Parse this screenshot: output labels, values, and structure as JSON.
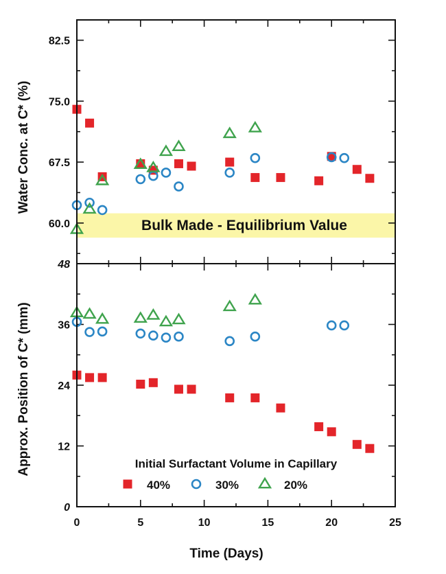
{
  "chart_data": [
    {
      "type": "scatter",
      "xlabel": "",
      "ylabel": "Water Conc. at C* (%)",
      "xlim": [
        0,
        25
      ],
      "ylim": [
        55,
        85
      ],
      "y_ticks": [
        60.0,
        67.5,
        75.0,
        82.5
      ],
      "y_tick_labels": [
        "60.0",
        "67.5",
        "75.0",
        "82.5"
      ],
      "band": {
        "y_range": [
          58.2,
          61.2
        ],
        "label": "Bulk Made - Equilibrium Value",
        "color": "#fbf6a8"
      },
      "series": [
        {
          "name": "40%",
          "marker": "square",
          "color": "#e3252a",
          "x": [
            0,
            1,
            2,
            5,
            6,
            8,
            9,
            12,
            14,
            16,
            19,
            20,
            22,
            23
          ],
          "y": [
            74.0,
            72.3,
            65.7,
            67.3,
            66.5,
            67.3,
            67.0,
            67.5,
            65.6,
            65.6,
            65.2,
            68.2,
            66.6,
            65.5
          ]
        },
        {
          "name": "30%",
          "marker": "circle",
          "color": "#2b86c5",
          "x": [
            0,
            1,
            2,
            5,
            6,
            7,
            8,
            12,
            14,
            20,
            21
          ],
          "y": [
            62.2,
            62.5,
            61.6,
            65.4,
            65.8,
            66.2,
            64.5,
            66.2,
            68.0,
            68.1,
            68.0
          ]
        },
        {
          "name": "20%",
          "marker": "triangle",
          "color": "#3fa34d",
          "x": [
            0,
            1,
            2,
            5,
            6,
            7,
            8,
            12,
            14
          ],
          "y": [
            59.2,
            61.7,
            65.2,
            67.2,
            66.8,
            68.8,
            69.4,
            71.0,
            71.7
          ]
        }
      ]
    },
    {
      "type": "scatter",
      "xlabel": "Time (Days)",
      "ylabel": "Approx. Position of C* (mm)",
      "xlim": [
        0,
        25
      ],
      "ylim": [
        0,
        48
      ],
      "x_ticks": [
        0,
        5,
        10,
        15,
        20,
        25
      ],
      "x_tick_labels": [
        "0",
        "5",
        "10",
        "15",
        "20",
        "25"
      ],
      "y_ticks": [
        0,
        12,
        24,
        36,
        48
      ],
      "y_tick_labels": [
        "0",
        "12",
        "24",
        "36",
        "48"
      ],
      "legend": {
        "title": "Initial Surfactant Volume in Capillary",
        "placement": "bottom-center"
      },
      "series": [
        {
          "name": "40%",
          "marker": "square",
          "color": "#e3252a",
          "x": [
            0,
            1,
            2,
            5,
            6,
            8,
            9,
            12,
            14,
            16,
            19,
            20,
            22,
            23
          ],
          "y": [
            26.0,
            25.5,
            25.5,
            24.2,
            24.5,
            23.2,
            23.2,
            21.5,
            21.5,
            19.5,
            15.8,
            14.8,
            12.3,
            11.5
          ]
        },
        {
          "name": "30%",
          "marker": "circle",
          "color": "#2b86c5",
          "x": [
            0,
            1,
            2,
            5,
            6,
            7,
            8,
            12,
            14,
            20,
            21
          ],
          "y": [
            36.5,
            34.5,
            34.6,
            34.2,
            33.8,
            33.4,
            33.6,
            32.7,
            33.6,
            35.8,
            35.8
          ]
        },
        {
          "name": "20%",
          "marker": "triangle",
          "color": "#3fa34d",
          "x": [
            0,
            1,
            2,
            5,
            6,
            7,
            8,
            12,
            14
          ],
          "y": [
            38.3,
            38.0,
            37.0,
            37.2,
            37.8,
            36.5,
            36.9,
            39.5,
            40.8
          ]
        }
      ]
    }
  ]
}
